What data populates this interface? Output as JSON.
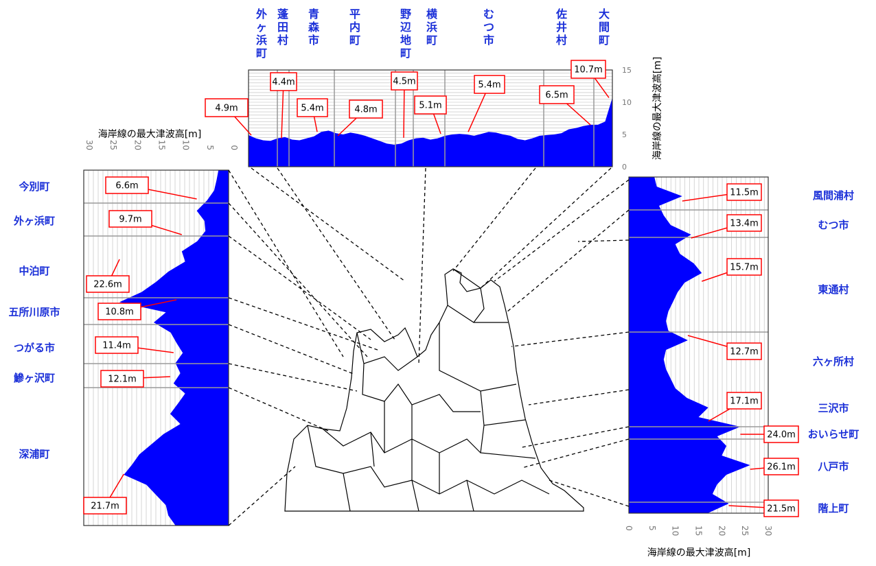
{
  "colors": {
    "fill": "#0000ff",
    "label": "#1a2fd8",
    "callout": "#ff0000",
    "grid": "#9a9a9a",
    "axis": "#777777"
  },
  "chart_data": [
    {
      "type": "area",
      "orientation": "horizontal",
      "ylabel": "海岸線の最大津波高[m]",
      "ylim": [
        0,
        15
      ],
      "yticks": [
        "0",
        "5",
        "10",
        "15"
      ],
      "grid": true,
      "municipalities": [
        "外ヶ浜町",
        "蓬田村",
        "青森市",
        "平内町",
        "野辺地町",
        "横浜町",
        "むつ市",
        "佐井村",
        "大間町"
      ],
      "profile": [
        4.9,
        4.4,
        4.1,
        4.0,
        4.4,
        4.6,
        4.2,
        4.1,
        4.4,
        4.7,
        5.4,
        5.6,
        5.2,
        5.0,
        5.3,
        5.1,
        4.8,
        4.4,
        4.0,
        3.6,
        3.4,
        3.6,
        4.1,
        4.4,
        4.5,
        4.2,
        4.4,
        4.8,
        5.0,
        5.1,
        5.0,
        4.8,
        5.1,
        5.4,
        5.3,
        5.0,
        4.8,
        4.3,
        4.1,
        4.4,
        4.8,
        4.9,
        5.0,
        5.2,
        5.8,
        6.0,
        6.3,
        6.5,
        6.5,
        7.0,
        10.7
      ],
      "callouts": [
        "4.9m",
        "4.4m",
        "5.4m",
        "4.8m",
        "4.5m",
        "5.1m",
        "5.4m",
        "6.5m",
        "10.7m"
      ]
    },
    {
      "type": "area",
      "orientation": "vertical-reversed",
      "xlabel": "海岸線の最大津波高[m]",
      "xlim": [
        0,
        30
      ],
      "xticks": [
        "30",
        "25",
        "20",
        "15",
        "10",
        "5",
        "0"
      ],
      "grid": true,
      "municipalities": [
        "今別町",
        "外ヶ浜町",
        "中泊町",
        "五所川原市",
        "つがる市",
        "鰺ヶ沢町",
        "深浦町"
      ],
      "profile": [
        2.1,
        2.5,
        3.0,
        4.5,
        6.6,
        5.0,
        4.8,
        6.5,
        9.7,
        9.0,
        12.5,
        15.0,
        18.0,
        22.6,
        13.0,
        15.5,
        12.0,
        10.8,
        9.5,
        11.0,
        10.0,
        11.4,
        9.0,
        10.5,
        12.1,
        10.0,
        13.5,
        16.0,
        18.5,
        20.0,
        21.7,
        17.0,
        15.0,
        13.0,
        12.5,
        11.0
      ],
      "callouts": [
        "6.6m",
        "9.7m",
        "22.6m",
        "10.8m",
        "11.4m",
        "12.1m",
        "21.7m"
      ]
    },
    {
      "type": "area",
      "orientation": "vertical",
      "xlabel": "海岸線の最大津波高[m]",
      "xlim": [
        0,
        30
      ],
      "xticks": [
        "0",
        "5",
        "10",
        "15",
        "20",
        "25",
        "30"
      ],
      "grid": true,
      "municipalities": [
        "風間浦村",
        "むつ市",
        "東通村",
        "六ヶ所村",
        "三沢市",
        "おいらせ町",
        "八戸市",
        "階上町"
      ],
      "profile": [
        5.5,
        6.0,
        11.5,
        6.5,
        7.5,
        9.0,
        13.4,
        10.0,
        11.0,
        14.0,
        15.7,
        12.0,
        10.5,
        9.5,
        8.5,
        8.0,
        8.5,
        12.7,
        8.0,
        7.5,
        8.0,
        9.0,
        10.0,
        12.5,
        17.1,
        15.0,
        24.0,
        19.0,
        21.0,
        20.0,
        26.1,
        21.0,
        19.0,
        18.0,
        21.5,
        17.0
      ],
      "callouts": [
        "11.5m",
        "13.4m",
        "15.7m",
        "12.7m",
        "17.1m",
        "24.0m",
        "26.1m",
        "21.5m"
      ]
    }
  ]
}
